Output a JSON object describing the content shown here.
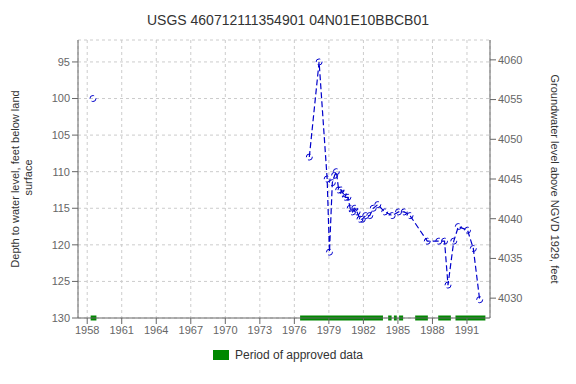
{
  "chart_data": {
    "type": "line",
    "title": "USGS 460712111354901 04N01E10BBCB01",
    "y_label": "Depth to water level, feet below land\n surface",
    "y2_label": "Groundwater level above NGVD 1929, feet",
    "xlim": [
      1957.2,
      1993.0
    ],
    "xticks": [
      1958,
      1961,
      1964,
      1967,
      1970,
      1973,
      1976,
      1979,
      1982,
      1985,
      1988,
      1991
    ],
    "ylim": [
      130,
      92
    ],
    "yticks": [
      95,
      100,
      105,
      110,
      115,
      120,
      125,
      130
    ],
    "y2lim": [
      4027.5,
      4062.5
    ],
    "y2ticks": [
      4030,
      4035,
      4040,
      4045,
      4050,
      4055,
      4060
    ],
    "grid": true,
    "legend": "bottom",
    "series": [
      {
        "x": [
          1958.5
        ],
        "values": [
          100.0
        ],
        "color": "#0000cc",
        "marker": "circle",
        "line_style": "dashed"
      },
      {
        "x": [
          1977.3,
          1978.15,
          1978.85,
          1979.05,
          1979.3,
          1979.5,
          1979.65,
          1979.85,
          1980.05,
          1980.25,
          1980.45,
          1980.65,
          1980.85,
          1981.05,
          1981.25,
          1981.45,
          1981.7,
          1981.9,
          1982.2,
          1982.55,
          1982.85,
          1983.25,
          1983.85,
          1984.5,
          1985.05,
          1985.55,
          1986.05,
          1987.55,
          1988.55,
          1989.05,
          1989.35,
          1989.85,
          1990.25,
          1991.05,
          1991.55,
          1992.1
        ],
        "values": [
          108.0,
          95.0,
          111.0,
          121.0,
          111.5,
          110.5,
          110.0,
          112.5,
          112.5,
          113.0,
          113.5,
          113.5,
          115.0,
          115.5,
          115.0,
          115.5,
          116.5,
          116.5,
          116.0,
          116.0,
          115.0,
          114.5,
          115.5,
          116.0,
          115.5,
          115.5,
          116.0,
          119.5,
          119.5,
          119.5,
          125.5,
          119.5,
          117.5,
          118.0,
          120.5,
          127.5
        ],
        "color": "#0000cc",
        "marker": "circle",
        "line_style": "dashed"
      }
    ],
    "periods": {
      "name": "Period of approved data",
      "color": "#008800",
      "level": 130,
      "ranges": [
        [
          1958.3,
          1958.8
        ],
        [
          1976.5,
          1983.7
        ],
        [
          1984.15,
          1984.45
        ],
        [
          1984.65,
          1984.9
        ],
        [
          1985.1,
          1985.45
        ],
        [
          1986.5,
          1987.6
        ],
        [
          1988.5,
          1989.6
        ],
        [
          1990.0,
          1992.6
        ]
      ]
    }
  }
}
